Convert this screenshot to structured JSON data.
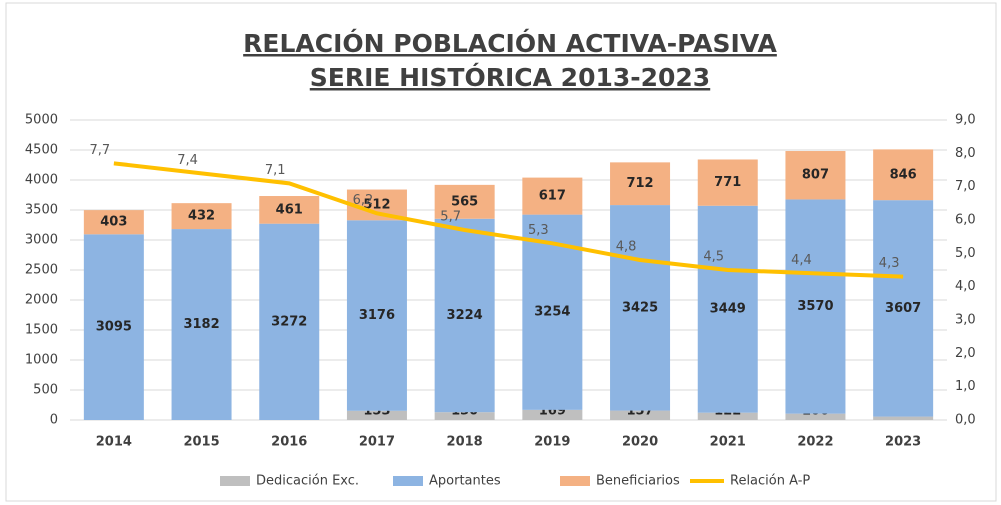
{
  "chart_data": {
    "type": "bar",
    "title": "RELACIÓN POBLACIÓN ACTIVA-PASIVA",
    "subtitle": "SERIE HISTÓRICA 2013-2023",
    "stacked": true,
    "categories": [
      "2014",
      "2015",
      "2016",
      "2017",
      "2018",
      "2019",
      "2020",
      "2021",
      "2022",
      "2023"
    ],
    "series": [
      {
        "name": "Dedicación Exc.",
        "color": "#bfbfbf",
        "values": [
          null,
          null,
          null,
          153,
          130,
          169,
          157,
          122,
          106,
          57
        ]
      },
      {
        "name": "Aportantes",
        "color": "#8db4e2",
        "values": [
          3095,
          3182,
          3272,
          3176,
          3224,
          3254,
          3425,
          3449,
          3570,
          3607
        ]
      },
      {
        "name": "Beneficiarios",
        "color": "#f4b183",
        "values": [
          403,
          432,
          461,
          512,
          565,
          617,
          712,
          771,
          807,
          846
        ]
      },
      {
        "name": "Relación A-P",
        "color": "#ffc000",
        "type": "line",
        "axis": "y2",
        "values": [
          7.7,
          7.4,
          7.1,
          6.2,
          5.7,
          5.3,
          4.8,
          4.5,
          4.4,
          4.3
        ],
        "value_labels": [
          "7,7",
          "7,4",
          "7,1",
          "6,2",
          "5,7",
          "5,3",
          "4,8",
          "4,5",
          "4,4",
          "4,3"
        ]
      }
    ],
    "ylim": [
      0,
      5000
    ],
    "yticks": [
      0,
      500,
      1000,
      1500,
      2000,
      2500,
      3000,
      3500,
      4000,
      4500,
      5000
    ],
    "y2lim": [
      0,
      9
    ],
    "y2ticks": [
      {
        "value": 0,
        "label": "0,0"
      },
      {
        "value": 1,
        "label": "1,0"
      },
      {
        "value": 2,
        "label": "2,0"
      },
      {
        "value": 3,
        "label": "3,0"
      },
      {
        "value": 4,
        "label": "4,0"
      },
      {
        "value": 5,
        "label": "5,0"
      },
      {
        "value": 6,
        "label": "6,0"
      },
      {
        "value": 7,
        "label": "7,0"
      },
      {
        "value": 8,
        "label": "8,0"
      },
      {
        "value": 9,
        "label": "9,0"
      }
    ],
    "grid": true,
    "legend": "bottom"
  }
}
